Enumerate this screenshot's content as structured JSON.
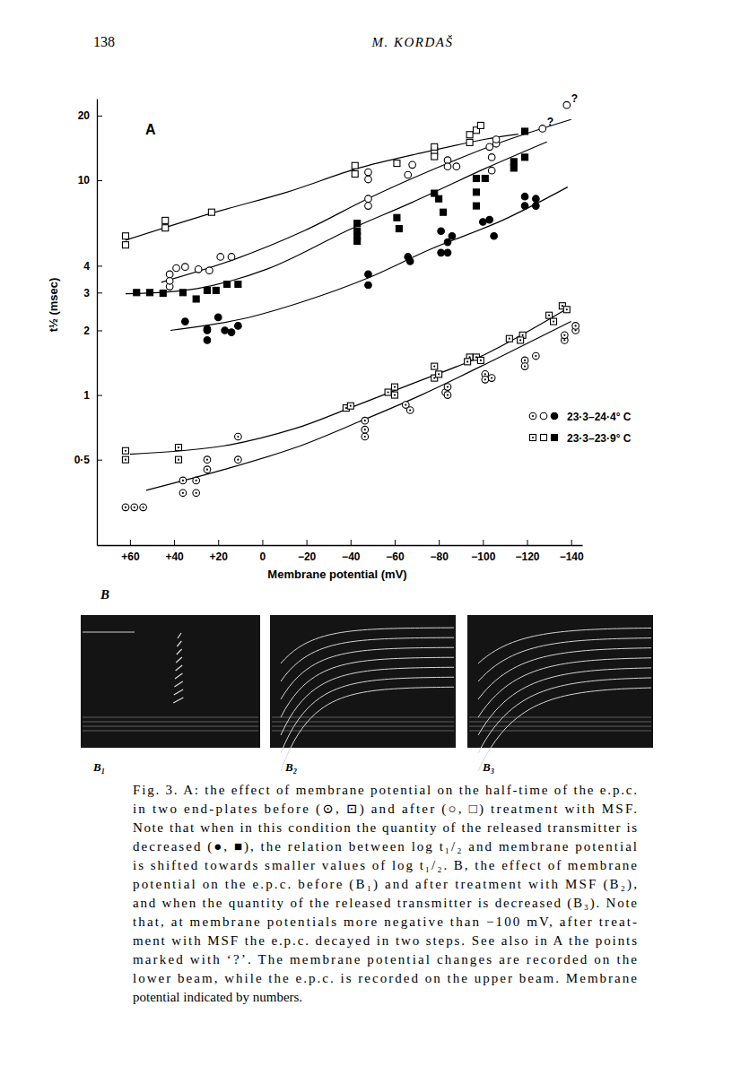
{
  "header": {
    "page_number": "138",
    "running_title": "M. KORDAŠ"
  },
  "chart_data": {
    "type": "scatter",
    "title": "A",
    "x_label": "Membrane potential (mV)",
    "y_label": "t½ (msec)",
    "log": "y",
    "grid": false,
    "legend": "lower right",
    "xlim": [
      75,
      -145
    ],
    "ylim": [
      0.2,
      24
    ],
    "xticks": [
      {
        "value": 60,
        "label": "+60"
      },
      {
        "value": 40,
        "label": "+40"
      },
      {
        "value": 20,
        "label": "+20"
      },
      0,
      {
        "value": -20,
        "label": "−20"
      },
      {
        "value": -40,
        "label": "−40"
      },
      {
        "value": -60,
        "label": "−60"
      },
      {
        "value": -80,
        "label": "−80"
      },
      {
        "value": -100,
        "label": "−100"
      },
      {
        "value": -120,
        "label": "−120"
      },
      {
        "value": -140,
        "label": "−140"
      }
    ],
    "yticks": [
      {
        "value": 0.5,
        "label": "0·5"
      },
      1,
      2,
      3,
      4,
      10,
      20
    ],
    "series": [
      {
        "name": "23·3–24·4° C",
        "type": "scatter",
        "marker": "circle-dot",
        "color": "#000000",
        "x": [
          62,
          58,
          54,
          36,
          30,
          36,
          30,
          25,
          25,
          11,
          11,
          -46.5,
          -46.5,
          -46.5,
          -65,
          -67,
          -83,
          -84,
          -84,
          -101,
          -104,
          -101,
          -119,
          -124,
          -119,
          -137,
          -137,
          -142,
          -142
        ],
        "values": [
          0.3,
          0.3,
          0.3,
          0.35,
          0.35,
          0.4,
          0.4,
          0.45,
          0.5,
          0.64,
          0.5,
          0.76,
          0.69,
          0.64,
          0.9,
          0.85,
          1.03,
          1.09,
          1.0,
          1.25,
          1.2,
          1.18,
          1.45,
          1.52,
          1.36,
          1.8,
          1.9,
          2.0,
          2.1
        ]
      },
      {
        "name": "23·3–24·4° C",
        "type": "scatter",
        "marker": "circle-open",
        "color": "#000000",
        "x": [
          42,
          42,
          42,
          39,
          35,
          29,
          24,
          19,
          14,
          -48,
          -48,
          -48,
          -48,
          -66,
          -68,
          -84,
          -84,
          -88,
          -104,
          -104,
          -106,
          -106,
          -103,
          -127,
          -138
        ],
        "values": [
          3.2,
          3.4,
          3.65,
          3.9,
          3.95,
          3.85,
          3.8,
          4.4,
          4.4,
          10.9,
          10.1,
          8.2,
          7.6,
          10.6,
          11.8,
          12.4,
          11.6,
          11.6,
          12.8,
          11.1,
          14.8,
          15.5,
          14.3,
          17.4,
          22.4
        ]
      },
      {
        "name": "23·3–24·4° C",
        "type": "scatter",
        "marker": "circle",
        "color": "#000000",
        "x": [
          35,
          25,
          20,
          25,
          25,
          17,
          14,
          11,
          -48,
          -48,
          -66,
          -67,
          -81,
          -84,
          -86,
          -84,
          -81,
          -100,
          -103,
          -105,
          -119,
          -119,
          -124,
          -124
        ],
        "values": [
          2.2,
          2.03,
          2.3,
          2.0,
          1.8,
          2.0,
          1.96,
          2.1,
          3.65,
          3.25,
          4.4,
          4.2,
          5.8,
          5.15,
          5.5,
          4.6,
          4.6,
          6.4,
          6.55,
          5.5,
          8.4,
          7.6,
          8.2,
          7.6
        ]
      },
      {
        "name": "23·3–23·9° C",
        "type": "scatter",
        "marker": "square-dot",
        "color": "#000000",
        "x": [
          62,
          62,
          38,
          38,
          -38,
          -40,
          -57,
          -60,
          -60,
          -78,
          -78,
          -80,
          -94,
          -97,
          -99,
          -93,
          -112,
          -118,
          -117,
          -130,
          -132,
          -136,
          -138
        ],
        "values": [
          0.55,
          0.5,
          0.57,
          0.5,
          0.87,
          0.89,
          1.03,
          1.09,
          1.0,
          1.2,
          1.36,
          1.25,
          1.5,
          1.5,
          1.45,
          1.43,
          1.83,
          1.9,
          1.8,
          2.35,
          2.2,
          2.6,
          2.5
        ]
      },
      {
        "name": "23·3–23·9° C",
        "type": "scatter",
        "marker": "square-open",
        "color": "#000000",
        "x": [
          62,
          62,
          44,
          44,
          23,
          -42,
          -42,
          -61,
          -78,
          -78,
          -78,
          -94,
          -94,
          -97,
          -99
        ],
        "values": [
          5.5,
          5.0,
          6.0,
          6.5,
          7.1,
          11.7,
          10.7,
          12.0,
          13.7,
          12.9,
          14.3,
          16.3,
          15.0,
          17.1,
          18.0
        ]
      },
      {
        "name": "23·3–23·9° C",
        "type": "scatter",
        "marker": "square",
        "color": "#000000",
        "x": [
          57,
          51,
          45,
          36,
          30,
          25,
          21,
          16,
          11,
          -43,
          -43,
          -43,
          -43,
          -61,
          -62,
          -78,
          -80,
          -82,
          -97,
          -97,
          -101,
          -97,
          -114,
          -114,
          -119,
          -119
        ],
        "values": [
          3.0,
          3.0,
          2.98,
          3.0,
          2.8,
          3.07,
          3.07,
          3.28,
          3.28,
          6.3,
          5.8,
          5.5,
          5.2,
          6.7,
          5.95,
          8.7,
          8.2,
          7.1,
          8.8,
          10.2,
          10.2,
          7.6,
          12.2,
          11.4,
          16.9,
          12.8
        ]
      },
      {
        "type": "line",
        "line_style": "solid",
        "color": "#000000",
        "x": [
          52.7,
          17.3,
          -15.2,
          -43.7,
          -72,
          -104.6,
          -140
        ],
        "values": [
          0.36,
          0.45,
          0.57,
          0.75,
          1.0,
          1.45,
          2.2
        ]
      },
      {
        "type": "line",
        "line_style": "solid",
        "color": "#000000",
        "x": [
          45.8,
          13.3,
          -19.3,
          -47.7,
          -76.2,
          -108.7,
          -140
        ],
        "values": [
          3.35,
          4.26,
          5.84,
          8.2,
          11.1,
          15.1,
          19.2
        ]
      },
      {
        "type": "line",
        "line_style": "solid",
        "color": "#000000",
        "x": [
          41.7,
          9.2,
          -19.3,
          -47.7,
          -76.2,
          -108.7,
          -138.4
        ],
        "values": [
          2.0,
          2.26,
          2.74,
          3.5,
          4.77,
          6.5,
          9.3
        ]
      },
      {
        "type": "line",
        "line_style": "solid",
        "color": "#000000",
        "x": [
          60,
          17.3,
          -15.2,
          -39.6,
          -68,
          -100.6,
          -139.2
        ],
        "values": [
          0.53,
          0.58,
          0.7,
          0.87,
          1.13,
          1.54,
          2.56
        ]
      },
      {
        "type": "line",
        "line_style": "solid",
        "color": "#000000",
        "x": [
          62,
          21.4,
          -11.1,
          -43.7,
          -72,
          -100.6,
          -116
        ],
        "values": [
          5.26,
          7.1,
          8.8,
          11.4,
          13.4,
          15.5,
          16.4
        ]
      },
      {
        "type": "line",
        "line_style": "solid",
        "color": "#000000",
        "x": [
          62,
          29.5,
          -2.4,
          -39.6,
          -68,
          -100.6,
          -129
        ],
        "values": [
          2.96,
          3.13,
          3.87,
          5.9,
          7.9,
          11.3,
          15.1
        ]
      }
    ],
    "annotations": [
      {
        "text": "?",
        "x": -138,
        "y": 22.4
      },
      {
        "text": "?",
        "x": -127,
        "y": 17.4
      }
    ]
  },
  "panel_b": {
    "label": "B",
    "panels": [
      "B₁",
      "B₂",
      "B₃"
    ]
  },
  "caption": [
    "Fig. 3. A: the effect of membrane potential on the half-time of the e.p.c.",
    "in two end-plates before (⊙, ⊡) and after (○, □) treatment with MSF.",
    "Note that when in this condition the quantity of the released transmitter is",
    "decreased (●, ■), the relation between log t₁/₂ and membrane potential",
    "is shifted towards smaller values of log t₁/₂. B, the effect of membrane",
    "potential on the e.p.c. before (B₁) and after treatment with MSF (B₂),",
    "and when the quantity of the released transmitter is decreased (B₃). Note",
    "that, at membrane potentials more negative than −100 mV, after treat-",
    "ment with MSF the e.p.c. decayed in two steps. See also in A the points",
    "marked with ‘?’. The membrane potential changes are recorded on the",
    "lower beam, while the e.p.c. is recorded on the upper beam. Membrane",
    "potential indicated by numbers."
  ]
}
